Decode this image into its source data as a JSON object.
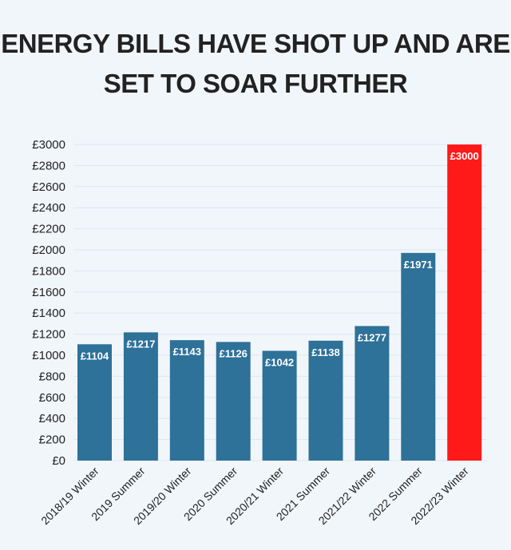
{
  "title_lines": [
    "ENERGY BILLS HAVE SHOT UP AND ARE",
    "SET TO SOAR FURTHER"
  ],
  "colors": {
    "bar": "#2e7199",
    "highlight": "#ff1a1a",
    "grid": "#dde6ee"
  },
  "chart_data": {
    "type": "bar",
    "title": "ENERGY BILLS HAVE SHOT UP AND ARE SET TO SOAR FURTHER",
    "xlabel": "",
    "ylabel": "",
    "ylim": [
      0,
      3000
    ],
    "yticks": [
      "£0",
      "£200",
      "£400",
      "£600",
      "£800",
      "£1000",
      "£1200",
      "£1400",
      "£1600",
      "£1800",
      "£2000",
      "£2200",
      "£2400",
      "£2600",
      "£2800",
      "£3000"
    ],
    "ytick_values": [
      0,
      200,
      400,
      600,
      800,
      1000,
      1200,
      1400,
      1600,
      1800,
      2000,
      2200,
      2400,
      2600,
      2800,
      3000
    ],
    "categories": [
      "2018/19 Winter",
      "2019 Summer",
      "2019/20 Winter",
      "2020 Summer",
      "2020/21 Winter",
      "2021 Summer",
      "2021/22 Winter",
      "2022 Summer",
      "2022/23 Winter"
    ],
    "values": [
      1104,
      1217,
      1143,
      1126,
      1042,
      1138,
      1277,
      1971,
      3000
    ],
    "data_labels": [
      "£1104",
      "£1217",
      "£1143",
      "£1126",
      "£1042",
      "£1138",
      "£1277",
      "£1971",
      "£3000"
    ],
    "highlight_index": 8,
    "grid": true,
    "legend": "none"
  }
}
